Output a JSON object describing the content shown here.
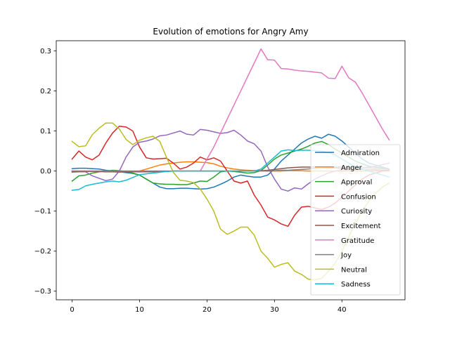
{
  "chart_data": {
    "type": "line",
    "title": "Evolution of emotions for Angry Amy",
    "xlabel": "",
    "ylabel": "",
    "xlim": [
      -2.35,
      49.35
    ],
    "ylim": [
      -0.3215,
      0.3255
    ],
    "xticks": [
      0,
      10,
      20,
      30,
      40
    ],
    "yticks": [
      -0.3,
      -0.2,
      -0.1,
      0.0,
      0.1,
      0.2,
      0.3
    ],
    "ytick_labels": [
      "−0.3",
      "−0.2",
      "−0.1",
      "0.0",
      "0.1",
      "0.2",
      "0.3"
    ],
    "grid": false,
    "legend_position": "lower right",
    "series": [
      {
        "name": "Admiration",
        "color": "#1f77b4",
        "values": [
          0.006,
          0.007,
          0.007,
          0.006,
          0.005,
          0.002,
          0.0,
          -0.002,
          -0.004,
          -0.006,
          -0.01,
          -0.02,
          -0.03,
          -0.04,
          -0.044,
          -0.044,
          -0.043,
          -0.043,
          -0.044,
          -0.045,
          -0.044,
          -0.04,
          -0.033,
          -0.025,
          -0.015,
          -0.01,
          -0.013,
          -0.015,
          -0.015,
          -0.01,
          0.005,
          0.025,
          0.04,
          0.055,
          0.07,
          0.08,
          0.087,
          0.082,
          0.092,
          0.087,
          0.075,
          0.06,
          0.045,
          0.03,
          0.02,
          0.015,
          0.01,
          0.005
        ]
      },
      {
        "name": "Anger",
        "color": "#ff7f0e",
        "values": [
          0.0,
          0.0,
          0.0,
          0.0,
          -0.001,
          -0.002,
          -0.002,
          -0.003,
          -0.002,
          -0.001,
          0.0,
          0.005,
          0.01,
          0.015,
          0.018,
          0.02,
          0.022,
          0.023,
          0.023,
          0.022,
          0.021,
          0.018,
          0.012,
          0.008,
          0.005,
          0.003,
          0.002,
          0.001,
          0.001,
          0.0,
          0.0,
          0.0,
          0.001,
          0.001,
          0.001,
          0.0,
          0.0,
          0.0,
          0.0,
          0.0,
          0.0,
          0.0,
          0.0,
          0.0,
          0.0,
          0.0,
          0.0,
          0.0
        ]
      },
      {
        "name": "Approval",
        "color": "#2ca02c",
        "values": [
          -0.025,
          -0.012,
          -0.01,
          -0.005,
          -0.002,
          0.0,
          0.002,
          0.001,
          -0.001,
          -0.005,
          -0.01,
          -0.02,
          -0.03,
          -0.032,
          -0.033,
          -0.033,
          -0.034,
          -0.034,
          -0.03,
          -0.025,
          -0.026,
          -0.015,
          -0.002,
          0.0,
          -0.001,
          -0.003,
          -0.005,
          -0.004,
          0.001,
          0.015,
          0.03,
          0.04,
          0.045,
          0.05,
          0.055,
          0.062,
          0.07,
          0.074,
          0.066,
          0.055,
          0.045,
          0.035,
          0.025,
          0.018,
          0.012,
          0.01,
          0.008,
          0.005
        ]
      },
      {
        "name": "Confusion",
        "color": "#d62728",
        "values": [
          0.03,
          0.05,
          0.035,
          0.028,
          0.04,
          0.07,
          0.095,
          0.112,
          0.11,
          0.1,
          0.06,
          0.033,
          0.03,
          0.031,
          0.032,
          0.02,
          0.005,
          0.01,
          0.02,
          0.035,
          0.028,
          0.033,
          0.025,
          0.0,
          -0.025,
          -0.03,
          -0.025,
          -0.06,
          -0.085,
          -0.115,
          -0.122,
          -0.132,
          -0.138,
          -0.11,
          -0.09,
          -0.088,
          -0.092,
          -0.096,
          -0.09,
          -0.08,
          -0.065,
          -0.05,
          -0.035,
          -0.02,
          -0.01,
          -0.005,
          0.0,
          0.002
        ]
      },
      {
        "name": "Curiosity",
        "color": "#9467bd",
        "values": [
          -0.003,
          -0.002,
          -0.002,
          -0.012,
          -0.018,
          -0.024,
          -0.02,
          0.0,
          0.035,
          0.06,
          0.072,
          0.075,
          0.08,
          0.088,
          0.09,
          0.095,
          0.1,
          0.092,
          0.09,
          0.104,
          0.102,
          0.098,
          0.094,
          0.096,
          0.102,
          0.09,
          0.075,
          0.068,
          0.05,
          0.01,
          -0.02,
          -0.045,
          -0.05,
          -0.042,
          -0.045,
          -0.032,
          -0.02,
          -0.012,
          -0.005,
          0.0,
          0.003,
          0.003,
          0.005,
          0.008,
          0.01,
          0.012,
          0.016,
          0.02
        ]
      },
      {
        "name": "Excitement",
        "color": "#8c564b",
        "values": [
          -0.001,
          -0.001,
          -0.001,
          -0.001,
          -0.001,
          -0.002,
          -0.002,
          -0.002,
          -0.002,
          -0.002,
          -0.002,
          -0.002,
          -0.002,
          -0.001,
          -0.001,
          0.0,
          0.0,
          0.0,
          0.0,
          0.0,
          0.0,
          0.0,
          0.0,
          0.0,
          0.0,
          0.0,
          0.0,
          0.001,
          0.001,
          0.002,
          0.004,
          0.006,
          0.008,
          0.009,
          0.01,
          0.01,
          0.01,
          0.009,
          0.008,
          0.008,
          0.007,
          0.006,
          0.005,
          0.004,
          0.003,
          0.003,
          0.002,
          0.002
        ]
      },
      {
        "name": "Gratitude",
        "color": "#e377c2",
        "values": [
          0.0,
          0.0,
          0.0,
          0.0,
          0.0,
          0.0,
          0.0,
          0.0,
          0.0,
          0.0,
          0.0,
          0.0,
          0.0,
          0.0,
          0.0,
          0.0,
          0.0,
          0.0,
          0.0,
          0.0,
          0.03,
          0.06,
          0.095,
          0.13,
          0.165,
          0.2,
          0.235,
          0.27,
          0.305,
          0.278,
          0.277,
          0.256,
          0.255,
          0.252,
          0.25,
          0.249,
          0.247,
          0.245,
          0.232,
          0.231,
          0.262,
          0.233,
          0.222,
          0.195,
          0.165,
          0.135,
          0.105,
          0.078
        ]
      },
      {
        "name": "Joy",
        "color": "#7f7f7f",
        "values": [
          0.0,
          0.0,
          0.0,
          0.0,
          0.0,
          0.0,
          0.0,
          0.0,
          0.0,
          0.0,
          0.0,
          0.0,
          0.0,
          0.0,
          0.0,
          0.0,
          0.0,
          0.0,
          0.0,
          0.0,
          0.0,
          0.0,
          0.0,
          0.0,
          0.0,
          0.0,
          0.0,
          0.0,
          0.0,
          0.0,
          0.001,
          0.002,
          0.002,
          0.003,
          0.004,
          0.005,
          0.007,
          0.009,
          0.01,
          0.01,
          0.011,
          0.01,
          0.009,
          0.008,
          0.008,
          0.007,
          0.006,
          0.005
        ]
      },
      {
        "name": "Neutral",
        "color": "#bcbd22",
        "values": [
          0.074,
          0.061,
          0.063,
          0.091,
          0.107,
          0.12,
          0.12,
          0.105,
          0.079,
          0.066,
          0.077,
          0.083,
          0.087,
          0.074,
          0.034,
          -0.003,
          -0.023,
          -0.025,
          -0.029,
          -0.045,
          -0.07,
          -0.1,
          -0.145,
          -0.158,
          -0.15,
          -0.14,
          -0.14,
          -0.16,
          -0.2,
          -0.218,
          -0.24,
          -0.233,
          -0.229,
          -0.25,
          -0.258,
          -0.27,
          -0.272,
          -0.268,
          -0.25,
          -0.23,
          -0.2,
          -0.165,
          -0.13,
          -0.1,
          -0.075,
          -0.055,
          -0.04,
          -0.03
        ]
      },
      {
        "name": "Sadness",
        "color": "#17becf",
        "values": [
          -0.048,
          -0.046,
          -0.037,
          -0.033,
          -0.03,
          -0.027,
          -0.025,
          -0.027,
          -0.023,
          -0.016,
          -0.009,
          -0.007,
          -0.005,
          -0.003,
          -0.001,
          0.0,
          0.0,
          0.0,
          0.0,
          0.0,
          0.0,
          0.0,
          0.0,
          0.0,
          0.0,
          0.0,
          0.0,
          0.0,
          0.005,
          0.02,
          0.035,
          0.05,
          0.053,
          0.051,
          0.052,
          0.052,
          0.051,
          0.05,
          0.046,
          0.04,
          0.03,
          0.02,
          0.01,
          0.005,
          0.0,
          -0.005,
          -0.01,
          -0.015
        ]
      }
    ]
  }
}
